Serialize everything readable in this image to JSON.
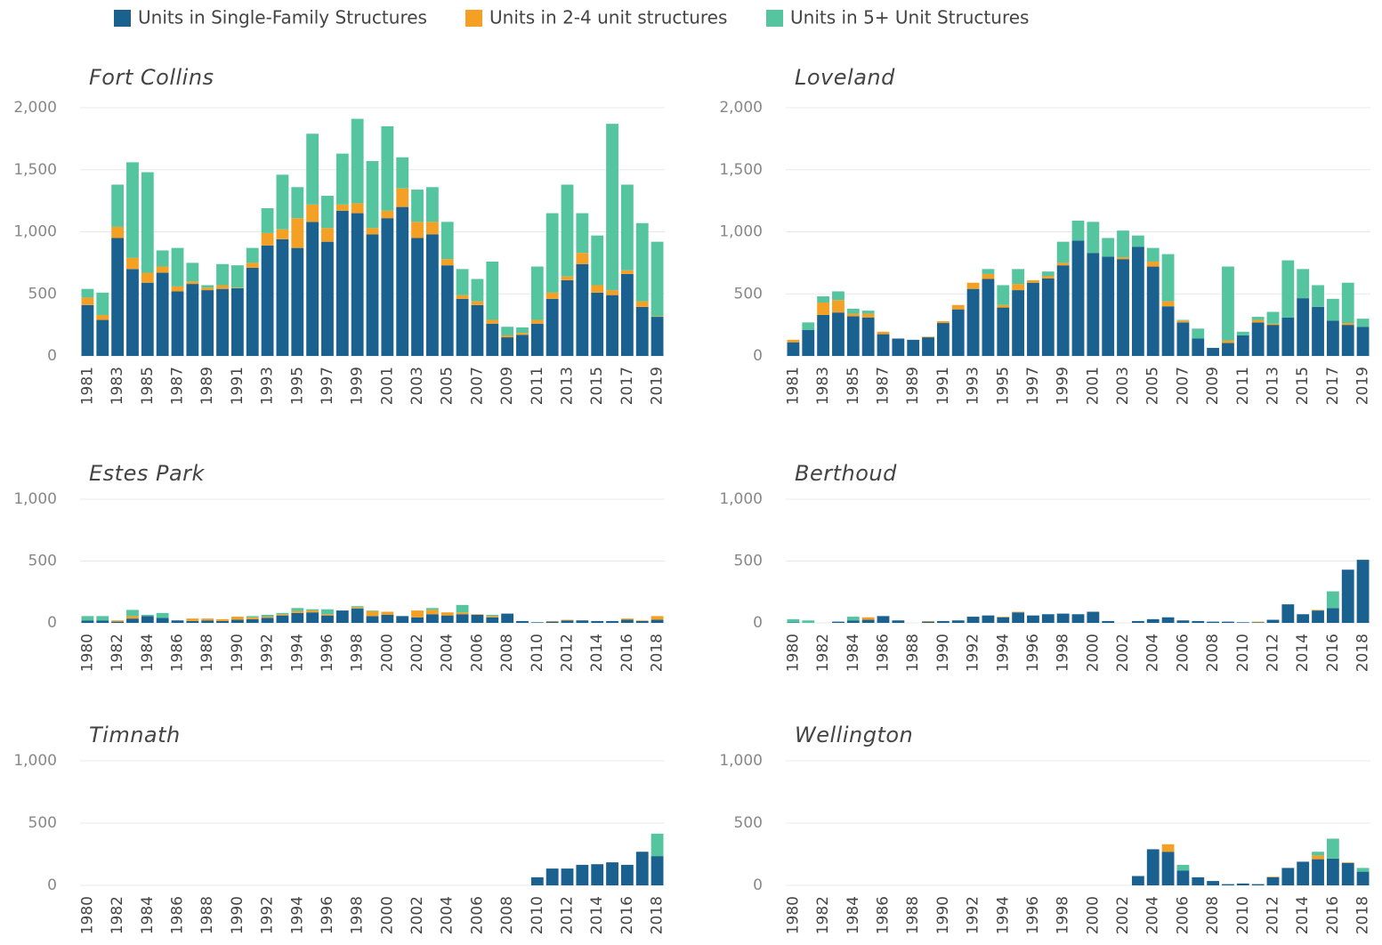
{
  "chart_data": [
    {
      "type": "stacked_bar",
      "title": "Fort Collins",
      "categories": [
        "1981",
        null,
        "1983",
        null,
        "1985",
        null,
        "1987",
        null,
        "1989",
        null,
        "1991",
        null,
        "1993",
        null,
        "1995",
        null,
        "1997",
        null,
        "1999",
        null,
        "2001",
        null,
        "2003",
        null,
        "2005",
        null,
        "2007",
        null,
        "2009",
        null,
        "2011",
        null,
        "2013",
        null,
        "2015",
        null,
        "2017",
        null,
        "2019"
      ],
      "ylim": [
        0,
        2000
      ],
      "yticks": [
        0,
        500,
        {
          "value": 1000,
          "label": "1,000"
        },
        {
          "value": 1500,
          "label": "1,500"
        },
        {
          "value": 2000,
          "label": "2,000"
        }
      ],
      "grid": true,
      "series": [
        {
          "name": "Units in Single-Family Structures",
          "color": "#1b6190",
          "values": [
            410,
            290,
            950,
            700,
            590,
            670,
            520,
            580,
            530,
            540,
            545,
            710,
            890,
            940,
            870,
            1080,
            920,
            1170,
            1150,
            980,
            1110,
            1200,
            950,
            980,
            730,
            460,
            410,
            260,
            150,
            170,
            260,
            460,
            610,
            740,
            510,
            490,
            660,
            395,
            315
          ]
        },
        {
          "name": "Units in 2-4 unit structures",
          "color": "#f4a024",
          "values": [
            60,
            40,
            90,
            90,
            80,
            50,
            40,
            20,
            20,
            30,
            5,
            40,
            100,
            80,
            240,
            140,
            110,
            50,
            80,
            50,
            60,
            150,
            130,
            100,
            50,
            30,
            30,
            30,
            15,
            15,
            30,
            50,
            30,
            90,
            60,
            40,
            30,
            45,
            5
          ]
        },
        {
          "name": "Units in 5+ Unit Structures",
          "color": "#55c59f",
          "values": [
            70,
            180,
            340,
            770,
            810,
            130,
            310,
            150,
            20,
            170,
            180,
            120,
            200,
            440,
            250,
            570,
            260,
            410,
            680,
            540,
            680,
            250,
            260,
            280,
            300,
            210,
            180,
            470,
            70,
            45,
            430,
            640,
            740,
            320,
            400,
            1340,
            690,
            630,
            600
          ]
        }
      ]
    },
    {
      "type": "stacked_bar",
      "title": "Loveland",
      "categories": [
        "1981",
        null,
        "1983",
        null,
        "1985",
        null,
        "1987",
        null,
        "1989",
        null,
        "1991",
        null,
        "1993",
        null,
        "1995",
        null,
        "1997",
        null,
        "1999",
        null,
        "2001",
        null,
        "2003",
        null,
        "2005",
        null,
        "2007",
        null,
        "2009",
        null,
        "2011",
        null,
        "2013",
        null,
        "2015",
        null,
        "2017",
        null,
        "2019"
      ],
      "ylim": [
        0,
        2000
      ],
      "yticks": [
        0,
        500,
        {
          "value": 1000,
          "label": "1,000"
        },
        {
          "value": 1500,
          "label": "1,500"
        },
        {
          "value": 2000,
          "label": "2,000"
        }
      ],
      "grid": true,
      "series": [
        {
          "name": "Units in Single-Family Structures",
          "color": "#1b6190",
          "values": [
            110,
            210,
            330,
            350,
            320,
            310,
            175,
            140,
            130,
            150,
            265,
            375,
            540,
            620,
            390,
            530,
            590,
            625,
            730,
            930,
            830,
            800,
            780,
            880,
            720,
            400,
            270,
            140,
            65,
            105,
            165,
            270,
            250,
            310,
            465,
            395,
            285,
            250,
            235
          ]
        },
        {
          "name": "Units in 2-4 unit structures",
          "color": "#f4a024",
          "values": [
            20,
            0,
            100,
            100,
            20,
            30,
            20,
            0,
            0,
            5,
            15,
            35,
            50,
            40,
            20,
            50,
            20,
            20,
            20,
            0,
            0,
            0,
            15,
            0,
            40,
            40,
            15,
            0,
            0,
            20,
            0,
            20,
            10,
            0,
            0,
            0,
            0,
            15,
            0
          ]
        },
        {
          "name": "Units in 5+ Unit Structures",
          "color": "#55c59f",
          "values": [
            0,
            60,
            50,
            70,
            40,
            25,
            0,
            0,
            0,
            0,
            0,
            0,
            0,
            40,
            160,
            120,
            0,
            35,
            170,
            160,
            250,
            150,
            215,
            90,
            110,
            380,
            5,
            80,
            0,
            595,
            30,
            25,
            95,
            460,
            235,
            175,
            175,
            325,
            65
          ]
        }
      ]
    },
    {
      "type": "stacked_bar",
      "title": "Estes Park",
      "categories": [
        "1980",
        null,
        "1982",
        null,
        "1984",
        null,
        "1986",
        null,
        "1988",
        null,
        "1990",
        null,
        "1992",
        null,
        "1994",
        null,
        "1996",
        null,
        "1998",
        null,
        "2000",
        null,
        "2002",
        null,
        "2004",
        null,
        "2006",
        null,
        "2008",
        null,
        "2010",
        null,
        "2012",
        null,
        "2014",
        null,
        "2016",
        null,
        "2018"
      ],
      "ylim": [
        0,
        1000
      ],
      "yticks": [
        0,
        500,
        {
          "value": 1000,
          "label": "1,000"
        }
      ],
      "grid": true,
      "series": [
        {
          "name": "Units in Single-Family Structures",
          "color": "#1b6190",
          "values": [
            20,
            20,
            10,
            35,
            55,
            40,
            20,
            15,
            20,
            15,
            25,
            30,
            40,
            60,
            80,
            85,
            60,
            100,
            115,
            55,
            65,
            55,
            45,
            70,
            60,
            70,
            65,
            45,
            75,
            15,
            5,
            10,
            20,
            20,
            15,
            15,
            25,
            15,
            25
          ]
        },
        {
          "name": "Units in 2-4 unit structures",
          "color": "#f4a024",
          "values": [
            0,
            0,
            10,
            20,
            0,
            0,
            0,
            20,
            15,
            15,
            25,
            15,
            10,
            10,
            15,
            15,
            10,
            0,
            10,
            40,
            25,
            0,
            55,
            35,
            25,
            15,
            5,
            10,
            0,
            0,
            0,
            5,
            5,
            0,
            0,
            0,
            10,
            5,
            30
          ]
        },
        {
          "name": "Units in 5+ Unit Structures",
          "color": "#55c59f",
          "values": [
            35,
            35,
            0,
            50,
            10,
            40,
            0,
            0,
            0,
            0,
            0,
            10,
            15,
            10,
            25,
            10,
            40,
            0,
            10,
            5,
            0,
            0,
            0,
            15,
            0,
            60,
            0,
            10,
            0,
            0,
            0,
            0,
            0,
            0,
            0,
            0,
            0,
            0,
            0
          ]
        }
      ]
    },
    {
      "type": "stacked_bar",
      "title": "Berthoud",
      "categories": [
        "1980",
        null,
        "1982",
        null,
        "1984",
        null,
        "1986",
        null,
        "1988",
        null,
        "1990",
        null,
        "1992",
        null,
        "1994",
        null,
        "1996",
        null,
        "1998",
        null,
        "2000",
        null,
        "2002",
        null,
        "2004",
        null,
        "2006",
        null,
        "2008",
        null,
        "2010",
        null,
        "2012",
        null,
        "2014",
        null,
        "2016",
        null,
        "2018"
      ],
      "ylim": [
        0,
        1000
      ],
      "yticks": [
        0,
        500,
        {
          "value": 1000,
          "label": "1,000"
        }
      ],
      "grid": true,
      "series": [
        {
          "name": "Units in Single-Family Structures",
          "color": "#1b6190",
          "values": [
            5,
            0,
            0,
            10,
            20,
            25,
            55,
            20,
            0,
            10,
            15,
            20,
            50,
            60,
            45,
            85,
            60,
            70,
            75,
            70,
            90,
            15,
            0,
            15,
            30,
            45,
            20,
            15,
            10,
            10,
            5,
            5,
            25,
            150,
            70,
            100,
            120,
            430,
            510
          ]
        },
        {
          "name": "Units in 2-4 unit structures",
          "color": "#f4a024",
          "values": [
            0,
            0,
            0,
            0,
            0,
            20,
            0,
            0,
            0,
            5,
            0,
            0,
            0,
            0,
            5,
            5,
            0,
            0,
            0,
            0,
            0,
            0,
            0,
            0,
            0,
            0,
            0,
            0,
            0,
            0,
            0,
            5,
            0,
            0,
            0,
            5,
            0,
            0,
            0
          ]
        },
        {
          "name": "Units in 5+ Unit Structures",
          "color": "#55c59f",
          "values": [
            25,
            20,
            0,
            0,
            30,
            0,
            0,
            0,
            0,
            0,
            0,
            0,
            0,
            0,
            0,
            0,
            0,
            0,
            0,
            0,
            0,
            0,
            0,
            0,
            0,
            0,
            0,
            0,
            0,
            0,
            0,
            0,
            0,
            0,
            0,
            0,
            135,
            0,
            0
          ]
        }
      ]
    },
    {
      "type": "stacked_bar",
      "title": "Timnath",
      "categories": [
        "1980",
        null,
        "1982",
        null,
        "1984",
        null,
        "1986",
        null,
        "1988",
        null,
        "1990",
        null,
        "1992",
        null,
        "1994",
        null,
        "1996",
        null,
        "1998",
        null,
        "2000",
        null,
        "2002",
        null,
        "2004",
        null,
        "2006",
        null,
        "2008",
        null,
        "2010",
        null,
        "2012",
        null,
        "2014",
        null,
        "2016",
        null,
        "2018"
      ],
      "ylim": [
        0,
        1000
      ],
      "yticks": [
        0,
        500,
        {
          "value": 1000,
          "label": "1,000"
        }
      ],
      "grid": true,
      "series": [
        {
          "name": "Units in Single-Family Structures",
          "color": "#1b6190",
          "values": [
            0,
            0,
            0,
            0,
            0,
            0,
            0,
            0,
            0,
            0,
            0,
            0,
            0,
            0,
            0,
            0,
            0,
            0,
            0,
            0,
            0,
            0,
            0,
            0,
            0,
            0,
            0,
            0,
            0,
            0,
            65,
            135,
            135,
            165,
            170,
            185,
            165,
            270,
            235
          ]
        },
        {
          "name": "Units in 2-4 unit structures",
          "color": "#f4a024",
          "values": [
            0,
            0,
            0,
            0,
            0,
            0,
            0,
            0,
            0,
            0,
            0,
            0,
            0,
            0,
            0,
            0,
            0,
            0,
            0,
            0,
            0,
            0,
            0,
            0,
            0,
            0,
            0,
            0,
            0,
            0,
            0,
            0,
            0,
            0,
            0,
            0,
            0,
            0,
            0
          ]
        },
        {
          "name": "Units in 5+ Unit Structures",
          "color": "#55c59f",
          "values": [
            0,
            0,
            0,
            0,
            0,
            0,
            0,
            0,
            0,
            0,
            0,
            0,
            0,
            0,
            0,
            0,
            0,
            0,
            0,
            0,
            0,
            0,
            0,
            0,
            0,
            0,
            0,
            0,
            0,
            0,
            0,
            0,
            0,
            0,
            0,
            0,
            0,
            0,
            180
          ]
        }
      ]
    },
    {
      "type": "stacked_bar",
      "title": "Wellington",
      "categories": [
        "1980",
        null,
        "1982",
        null,
        "1984",
        null,
        "1986",
        null,
        "1988",
        null,
        "1990",
        null,
        "1992",
        null,
        "1994",
        null,
        "1996",
        null,
        "1998",
        null,
        "2000",
        null,
        "2002",
        null,
        "2004",
        null,
        "2006",
        null,
        "2008",
        null,
        "2010",
        null,
        "2012",
        null,
        "2014",
        null,
        "2016",
        null,
        "2018"
      ],
      "ylim": [
        0,
        1000
      ],
      "yticks": [
        0,
        500,
        {
          "value": 1000,
          "label": "1,000"
        }
      ],
      "grid": true,
      "series": [
        {
          "name": "Units in Single-Family Structures",
          "color": "#1b6190",
          "values": [
            0,
            0,
            0,
            0,
            0,
            0,
            0,
            0,
            0,
            0,
            0,
            0,
            0,
            0,
            0,
            0,
            0,
            0,
            0,
            0,
            0,
            0,
            0,
            75,
            290,
            270,
            120,
            65,
            35,
            10,
            15,
            10,
            65,
            140,
            190,
            210,
            215,
            180,
            110
          ]
        },
        {
          "name": "Units in 2-4 unit structures",
          "color": "#f4a024",
          "values": [
            0,
            0,
            0,
            0,
            0,
            0,
            0,
            0,
            0,
            0,
            0,
            0,
            0,
            0,
            0,
            0,
            0,
            0,
            0,
            0,
            0,
            0,
            0,
            0,
            0,
            60,
            0,
            0,
            0,
            0,
            0,
            0,
            5,
            0,
            0,
            30,
            0,
            5,
            0
          ]
        },
        {
          "name": "Units in 5+ Unit Structures",
          "color": "#55c59f",
          "values": [
            0,
            0,
            0,
            0,
            0,
            0,
            0,
            0,
            0,
            0,
            0,
            0,
            0,
            0,
            0,
            0,
            0,
            0,
            0,
            0,
            0,
            0,
            0,
            0,
            0,
            0,
            45,
            0,
            0,
            0,
            0,
            0,
            0,
            0,
            0,
            30,
            160,
            0,
            30
          ]
        }
      ]
    }
  ]
}
